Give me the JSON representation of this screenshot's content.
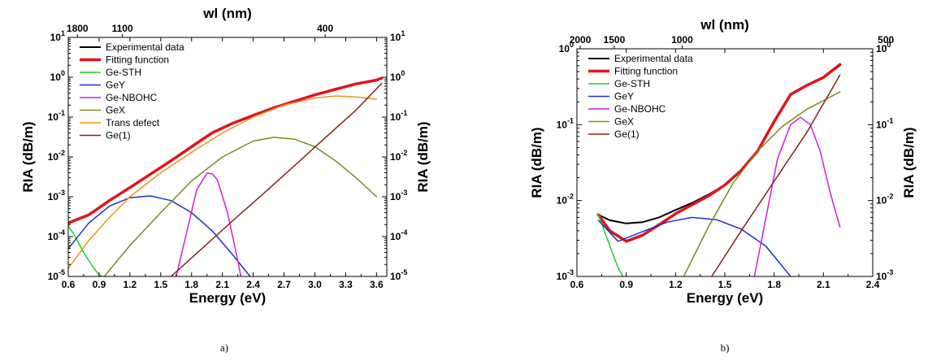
{
  "chart_data": [
    {
      "panel_label": "a)",
      "type": "line",
      "xlabel": "Energy (eV)",
      "ylabel": "RIA (dB/m)",
      "ylabel_right": "RIA (dB/m)",
      "top_axis_label": "wl (nm)",
      "xlim": [
        0.6,
        3.7
      ],
      "ylim": [
        1e-05,
        10
      ],
      "yscale": "log",
      "x_ticks": [
        "0.6",
        "0.9",
        "1.2",
        "1.5",
        "1.8",
        "2.1",
        "2.4",
        "2.7",
        "3.0",
        "3.3",
        "3.6"
      ],
      "y_ticks": [
        "10-5",
        "10-4",
        "10-3",
        "10-2",
        "10-1",
        "100",
        "101"
      ],
      "top_ticks": [
        {
          "label": "1800",
          "energy": 0.689
        },
        {
          "label": "1100",
          "energy": 1.127
        },
        {
          "label": "400",
          "energy": 3.1
        }
      ],
      "legend_position": "top-left",
      "series": [
        {
          "name": "Experimental data",
          "color": "#000000",
          "width": 2,
          "x": [
            0.6,
            0.8,
            1.0,
            1.2,
            1.4,
            1.6,
            1.8,
            2.0,
            2.2,
            2.4,
            2.6,
            2.8,
            3.0,
            3.2,
            3.4,
            3.6,
            3.65
          ],
          "y": [
            0.00022,
            0.00035,
            0.0008,
            0.0017,
            0.0037,
            0.008,
            0.018,
            0.04,
            0.07,
            0.11,
            0.17,
            0.25,
            0.36,
            0.5,
            0.68,
            0.85,
            0.95
          ]
        },
        {
          "name": "Fitting function",
          "color": "#e0141c",
          "width": 3.5,
          "x": [
            0.6,
            0.8,
            1.0,
            1.2,
            1.4,
            1.6,
            1.8,
            2.0,
            2.2,
            2.4,
            2.6,
            2.8,
            3.0,
            3.2,
            3.4,
            3.6,
            3.65
          ],
          "y": [
            0.00022,
            0.00035,
            0.0008,
            0.0017,
            0.0037,
            0.008,
            0.018,
            0.04,
            0.07,
            0.11,
            0.17,
            0.25,
            0.36,
            0.5,
            0.68,
            0.85,
            0.95
          ]
        },
        {
          "name": "Ge-STH",
          "color": "#22cc22",
          "width": 1.5,
          "x": [
            0.6,
            0.65,
            0.7,
            0.75,
            0.8,
            0.85,
            0.9,
            0.93
          ],
          "y": [
            0.00018,
            0.00012,
            7e-05,
            4e-05,
            2.5e-05,
            1.6e-05,
            1.1e-05,
            1e-05
          ]
        },
        {
          "name": "GeY",
          "color": "#1c32c8",
          "width": 1.5,
          "x": [
            0.6,
            0.8,
            1.0,
            1.2,
            1.4,
            1.6,
            1.8,
            2.0,
            2.2,
            2.37
          ],
          "y": [
            5e-05,
            0.00022,
            0.00058,
            0.00095,
            0.00105,
            0.0008,
            0.0004,
            0.00014,
            3.5e-05,
            1e-05
          ]
        },
        {
          "name": "Ge-NBOHC",
          "color": "#d21ed2",
          "width": 1.5,
          "x": [
            1.65,
            1.75,
            1.85,
            1.95,
            2.0,
            2.05,
            2.15,
            2.25,
            2.28
          ],
          "y": [
            1e-05,
            0.00012,
            0.0015,
            0.0039,
            0.0038,
            0.0027,
            0.0004,
            2.5e-05,
            1e-05
          ]
        },
        {
          "name": "GeX",
          "color": "#7a8a1a",
          "width": 1.5,
          "x": [
            0.95,
            1.2,
            1.5,
            1.8,
            2.1,
            2.4,
            2.6,
            2.8,
            3.0,
            3.2,
            3.4,
            3.6
          ],
          "y": [
            1e-05,
            6e-05,
            0.0004,
            0.0025,
            0.01,
            0.025,
            0.031,
            0.028,
            0.018,
            0.008,
            0.003,
            0.001
          ]
        },
        {
          "name": "Trans defect",
          "color": "#f0921e",
          "width": 1.5,
          "x": [
            0.6,
            0.8,
            1.0,
            1.2,
            1.5,
            1.8,
            2.1,
            2.4,
            2.7,
            3.0,
            3.2,
            3.4,
            3.6
          ],
          "y": [
            1.6e-05,
            8e-05,
            0.0003,
            0.001,
            0.004,
            0.013,
            0.04,
            0.1,
            0.2,
            0.3,
            0.34,
            0.32,
            0.28
          ]
        },
        {
          "name": "Ge(1)",
          "color": "#8c1e1e",
          "width": 1.5,
          "x": [
            1.6,
            1.9,
            2.2,
            2.5,
            2.8,
            3.1,
            3.4,
            3.65
          ],
          "y": [
            1e-05,
            5e-05,
            0.00025,
            0.0012,
            0.006,
            0.03,
            0.15,
            0.7
          ]
        }
      ]
    },
    {
      "panel_label": "b)",
      "type": "line",
      "xlabel": "Energy (eV)",
      "ylabel": "RIA (dB/m)",
      "ylabel_right": "RIA (dB/m)",
      "top_axis_label": "wl (nm)",
      "xlim": [
        0.6,
        2.4
      ],
      "ylim": [
        0.001,
        1
      ],
      "yscale": "log",
      "x_ticks": [
        "0.6",
        "0.9",
        "1.2",
        "1.5",
        "1.8",
        "2.1",
        "2.4"
      ],
      "y_ticks": [
        "10-3",
        "10-2",
        "10-1",
        "100"
      ],
      "top_ticks": [
        {
          "label": "2000",
          "energy": 0.62
        },
        {
          "label": "1500",
          "energy": 0.827
        },
        {
          "label": "1000",
          "energy": 1.24
        },
        {
          "label": "500",
          "energy": 2.48
        }
      ],
      "legend_position": "top-left",
      "series": [
        {
          "name": "Experimental data",
          "color": "#000000",
          "width": 2,
          "x": [
            0.73,
            0.8,
            0.9,
            1.0,
            1.1,
            1.2,
            1.3,
            1.4,
            1.5,
            1.6,
            1.7,
            1.8,
            1.9,
            2.0,
            2.1,
            2.2
          ],
          "y": [
            0.0065,
            0.0055,
            0.005,
            0.0052,
            0.006,
            0.0075,
            0.0093,
            0.012,
            0.016,
            0.025,
            0.045,
            0.11,
            0.25,
            0.33,
            0.42,
            0.6
          ]
        },
        {
          "name": "Fitting function",
          "color": "#e0141c",
          "width": 3.5,
          "x": [
            0.73,
            0.8,
            0.9,
            1.0,
            1.1,
            1.2,
            1.3,
            1.4,
            1.5,
            1.6,
            1.7,
            1.8,
            1.9,
            2.0,
            2.1,
            2.2
          ],
          "y": [
            0.0065,
            0.004,
            0.0029,
            0.0035,
            0.0048,
            0.0067,
            0.0088,
            0.0115,
            0.016,
            0.025,
            0.045,
            0.11,
            0.25,
            0.33,
            0.42,
            0.62
          ]
        },
        {
          "name": "Ge-STH",
          "color": "#22cc22",
          "width": 1.5,
          "x": [
            0.73,
            0.77,
            0.81,
            0.85,
            0.88
          ],
          "y": [
            0.0065,
            0.0038,
            0.0022,
            0.0013,
            0.001
          ]
        },
        {
          "name": "GeY",
          "color": "#1c32c8",
          "width": 1.5,
          "x": [
            0.73,
            0.85,
            1.0,
            1.15,
            1.3,
            1.45,
            1.6,
            1.75,
            1.9
          ],
          "y": [
            0.0055,
            0.0029,
            0.0039,
            0.0052,
            0.006,
            0.0056,
            0.0042,
            0.0025,
            0.001
          ]
        },
        {
          "name": "Ge-NBOHC",
          "color": "#d21ed2",
          "width": 1.5,
          "x": [
            1.68,
            1.75,
            1.82,
            1.9,
            1.96,
            2.02,
            2.08,
            2.14,
            2.2
          ],
          "y": [
            0.001,
            0.006,
            0.035,
            0.1,
            0.125,
            0.1,
            0.045,
            0.013,
            0.0045
          ]
        },
        {
          "name": "GeX",
          "color": "#7a8a1a",
          "width": 1.5,
          "x": [
            1.25,
            1.4,
            1.55,
            1.7,
            1.85,
            2.0,
            2.2
          ],
          "y": [
            0.001,
            0.0045,
            0.017,
            0.045,
            0.095,
            0.16,
            0.27
          ]
        },
        {
          "name": "Ge(1)",
          "color": "#8c1e1e",
          "width": 1.5,
          "x": [
            1.42,
            1.6,
            1.8,
            2.0,
            2.2
          ],
          "y": [
            0.001,
            0.004,
            0.018,
            0.08,
            0.45
          ]
        }
      ]
    }
  ]
}
